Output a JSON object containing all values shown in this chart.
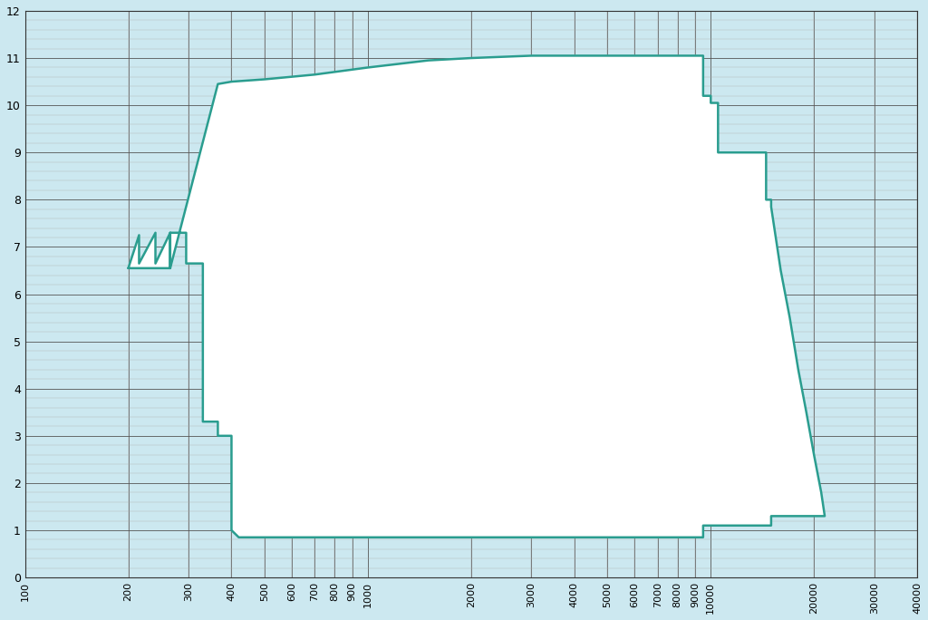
{
  "bg_color": "#cce8f0",
  "inner_color": "#ffffff",
  "line_color": "#2a9d8f",
  "line_width": 1.8,
  "xlim": [
    100,
    40000
  ],
  "ylim": [
    0,
    12
  ],
  "xticks": [
    100,
    200,
    300,
    400,
    500,
    600,
    700,
    800,
    900,
    1000,
    2000,
    3000,
    4000,
    5000,
    6000,
    7000,
    8000,
    9000,
    10000,
    20000,
    30000,
    40000
  ],
  "yticks": [
    0,
    1,
    2,
    3,
    4,
    5,
    6,
    7,
    8,
    9,
    10,
    11,
    12
  ],
  "grid_major_color": "#555555",
  "grid_minor_color": "#aaaaaa",
  "curve_x": [
    200,
    215,
    215,
    240,
    240,
    270,
    270,
    300,
    300,
    330,
    330,
    365,
    365,
    390,
    390,
    420,
    450,
    490,
    550,
    620,
    700,
    800,
    900,
    1000,
    1200,
    1500,
    2000,
    3000,
    5000,
    7000,
    9000,
    9500,
    9500,
    10000,
    10000,
    10500,
    10500,
    11500,
    14500,
    14500,
    15000,
    15000,
    16500,
    21500,
    21500,
    15000,
    15000,
    10500,
    9500,
    9500,
    6000,
    3000,
    1500,
    1000,
    800,
    600,
    500,
    430,
    415,
    400,
    400,
    380,
    365,
    365,
    330,
    330,
    300,
    300,
    270,
    270,
    240,
    240,
    215,
    215,
    200
  ],
  "curve_y": [
    6.55,
    6.55,
    7.25,
    7.3,
    6.65,
    6.7,
    6.55,
    6.55,
    7.25,
    7.3,
    6.65,
    6.7,
    3.3,
    3.3,
    3.0,
    1.05,
    1.05,
    1.05,
    1.05,
    1.05,
    1.05,
    1.05,
    1.05,
    1.05,
    1.05,
    1.05,
    1.05,
    1.05,
    1.05,
    1.05,
    1.05,
    1.05,
    10.2,
    10.2,
    10.1,
    10.1,
    9.0,
    9.0,
    9.0,
    8.0,
    8.0,
    7.85,
    4.8,
    1.3,
    1.3,
    1.3,
    1.1,
    1.1,
    0.85,
    0.85,
    0.85,
    0.85,
    0.85,
    0.85,
    0.85,
    0.85,
    0.85,
    0.85,
    1.05,
    1.05,
    3.0,
    3.0,
    3.3,
    6.65,
    6.65,
    7.3,
    7.25,
    6.55,
    6.55,
    7.3,
    7.25,
    6.65,
    6.65,
    7.25,
    6.55
  ],
  "upper_curve_x": [
    365,
    390,
    450,
    600,
    800,
    1000,
    1200,
    1500,
    2000,
    3000,
    5000,
    7000,
    8000,
    9000,
    9500
  ],
  "upper_curve_y": [
    10.45,
    10.45,
    10.5,
    10.6,
    10.7,
    10.8,
    11.0,
    11.0,
    11.0,
    11.05,
    11.05,
    11.05,
    11.05,
    11.05,
    11.05
  ]
}
